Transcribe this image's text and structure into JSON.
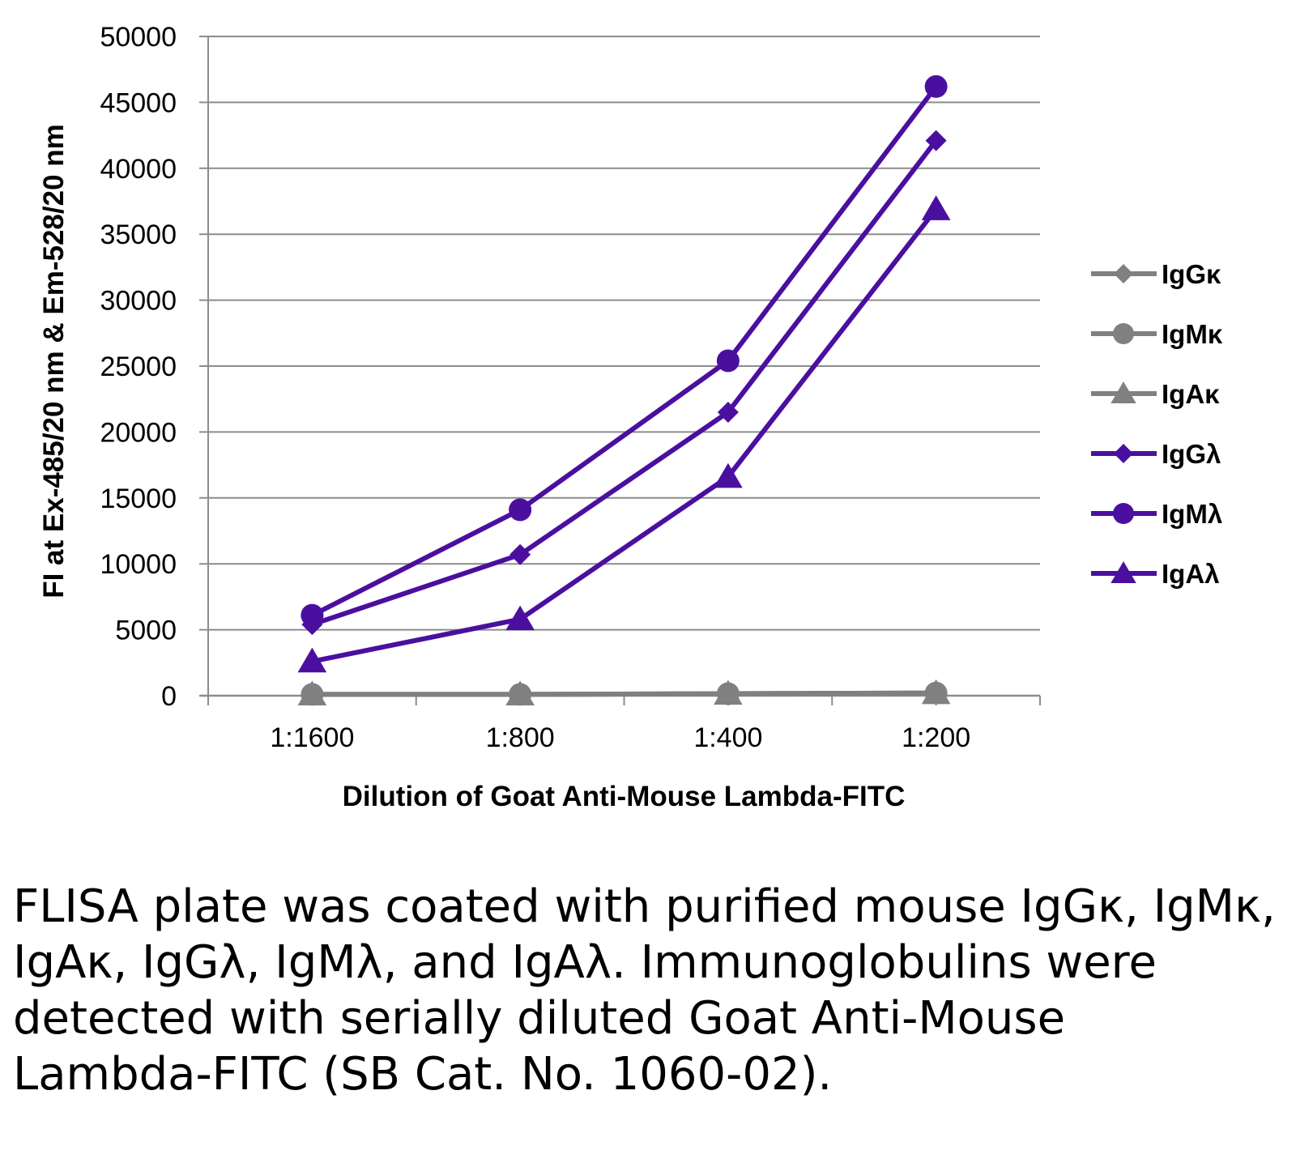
{
  "chart_data": {
    "type": "line",
    "xlabel": "Dilution of Goat Anti-Mouse Lambda-FITC",
    "ylabel": "FI at Ex-485/20 nm & Em-528/20 nm",
    "categories": [
      "1:1600",
      "1:800",
      "1:400",
      "1:200"
    ],
    "ylim": [
      0,
      50000
    ],
    "yticks": [
      0,
      5000,
      10000,
      15000,
      20000,
      25000,
      30000,
      35000,
      40000,
      45000,
      50000
    ],
    "grid": true,
    "legend_position": "right",
    "series": [
      {
        "name": "IgGκ",
        "marker": "diamond",
        "color": "#808080",
        "values": [
          100,
          100,
          150,
          200
        ]
      },
      {
        "name": "IgMκ",
        "marker": "circle",
        "color": "#808080",
        "values": [
          100,
          100,
          150,
          200
        ]
      },
      {
        "name": "IgAκ",
        "marker": "triangle",
        "color": "#808080",
        "values": [
          100,
          100,
          150,
          200
        ]
      },
      {
        "name": "IgGλ",
        "marker": "diamond",
        "color": "#4b0fa0",
        "values": [
          5400,
          10700,
          21500,
          42100
        ]
      },
      {
        "name": "IgMλ",
        "marker": "circle",
        "color": "#4b0fa0",
        "values": [
          6100,
          14100,
          25400,
          46200
        ]
      },
      {
        "name": "IgAλ",
        "marker": "triangle",
        "color": "#4b0fa0",
        "values": [
          2600,
          5800,
          16600,
          36900
        ]
      }
    ]
  },
  "caption": "FLISA plate was coated with purified mouse IgGκ, IgMκ, IgAκ, IgGλ, IgMλ, and IgAλ. Immunoglobulins were detected with serially diluted Goat Anti-Mouse Lambda-FITC (SB Cat. No. 1060-02)."
}
